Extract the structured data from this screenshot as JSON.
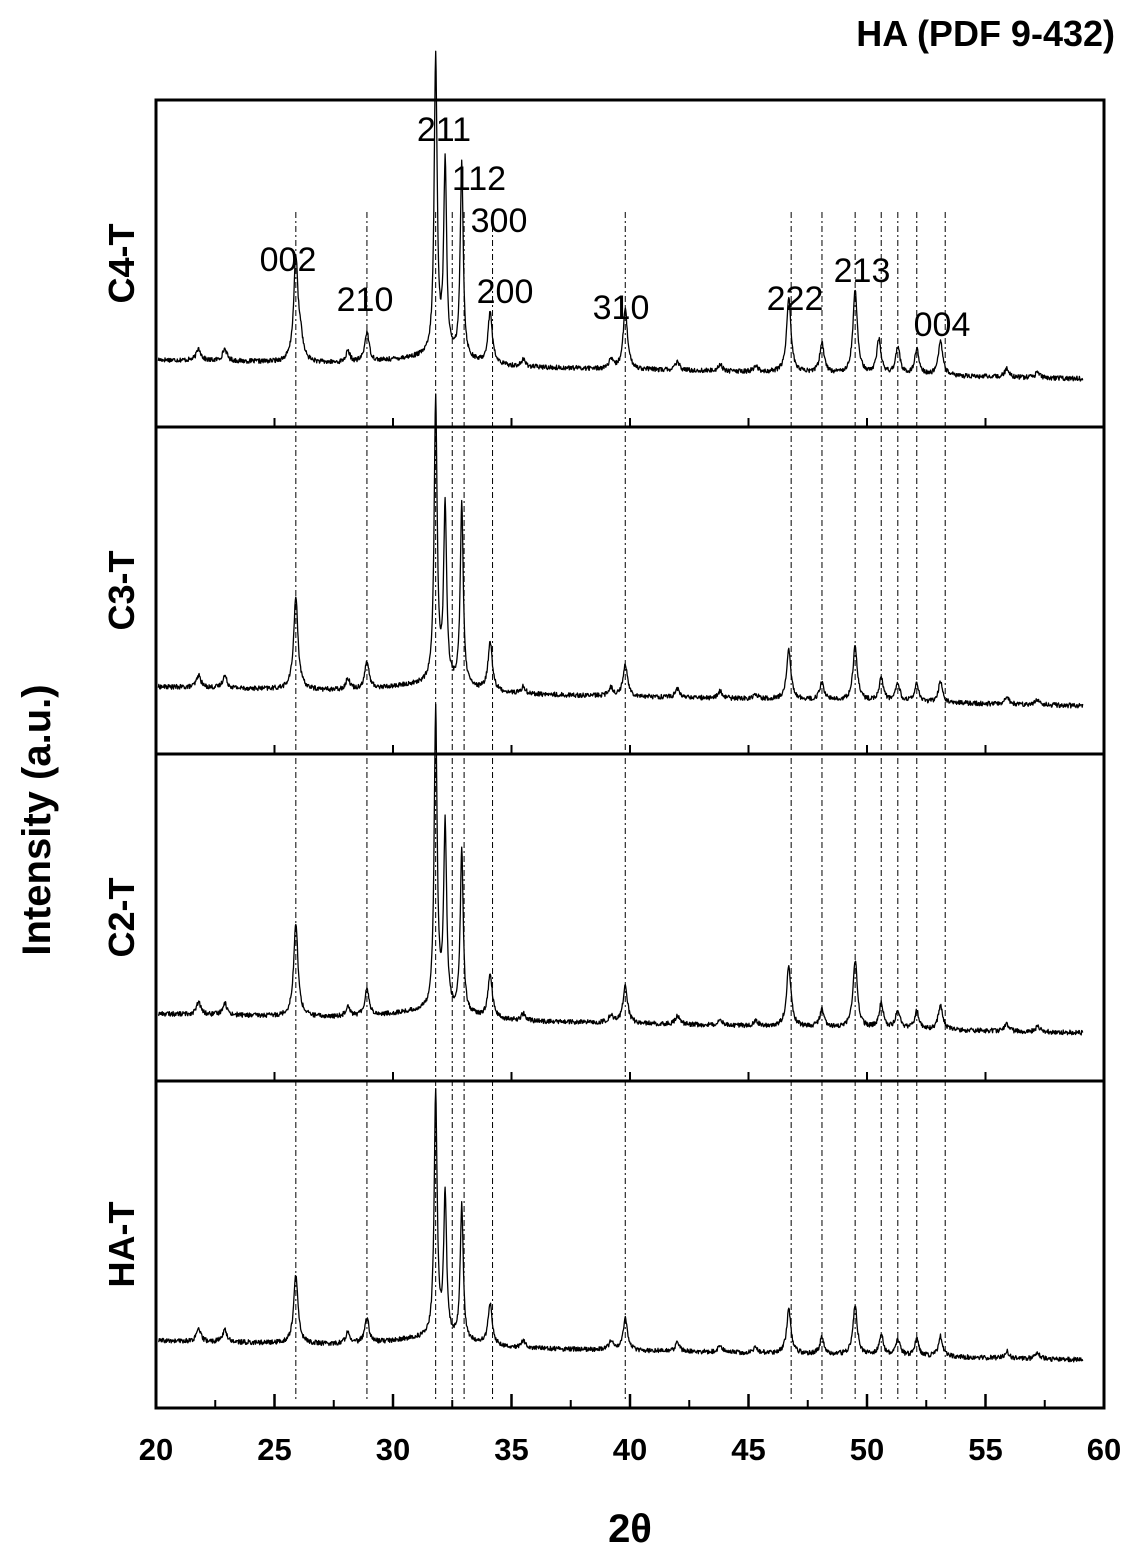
{
  "chart_data": {
    "type": "line",
    "title": "HA (PDF 9-432)",
    "xlabel": "2θ",
    "ylabel": "Intensity (a.u.)",
    "xlim": [
      20,
      60
    ],
    "xticks": [
      20,
      25,
      30,
      35,
      40,
      45,
      50,
      55,
      60
    ],
    "grid": false,
    "panels": [
      "C4-T",
      "C3-T",
      "C2-T",
      "HA-T"
    ],
    "reference_peaks": [
      {
        "label": "002",
        "x": 25.9
      },
      {
        "label": "210",
        "x": 28.9
      },
      {
        "label": "211",
        "x": 31.8
      },
      {
        "label": "112",
        "x": 32.2
      },
      {
        "label": "300",
        "x": 32.9
      },
      {
        "label": "200",
        "x": 34.1
      },
      {
        "label": "310",
        "x": 39.8
      },
      {
        "label": "222",
        "x": 46.7
      },
      {
        "label": "213",
        "x": 49.5
      },
      {
        "label": "004",
        "x": 53.1
      }
    ],
    "reference_lines": [
      25.9,
      28.9,
      31.8,
      32.5,
      33.0,
      34.2,
      39.8,
      46.8,
      48.1,
      49.5,
      50.6,
      51.3,
      52.1,
      53.3
    ],
    "series": [
      {
        "name": "C4-T",
        "x_range": [
          20.1,
          59.1
        ],
        "baseline": [
          [
            20.1,
            2.0
          ],
          [
            59.1,
            0.6
          ]
        ],
        "peaks": [
          [
            21.8,
            0.9
          ],
          [
            22.9,
            0.9
          ],
          [
            25.9,
            7.5
          ],
          [
            26.1,
            1.5
          ],
          [
            28.1,
            0.8
          ],
          [
            28.9,
            2.2
          ],
          [
            31.8,
            22.0
          ],
          [
            32.2,
            14.0
          ],
          [
            32.9,
            14.5
          ],
          [
            34.1,
            3.8
          ],
          [
            35.5,
            0.5
          ],
          [
            39.2,
            0.6
          ],
          [
            39.8,
            4.4
          ],
          [
            42.0,
            0.6
          ],
          [
            43.8,
            0.5
          ],
          [
            45.3,
            0.4
          ],
          [
            46.7,
            5.5
          ],
          [
            48.1,
            2.2
          ],
          [
            49.5,
            6.2
          ],
          [
            50.5,
            2.5
          ],
          [
            51.3,
            2.0
          ],
          [
            52.1,
            1.9
          ],
          [
            53.1,
            2.6
          ],
          [
            55.9,
            0.6
          ],
          [
            57.2,
            0.4
          ]
        ]
      },
      {
        "name": "C3-T",
        "x_range": [
          20.1,
          59.1
        ],
        "baseline": [
          [
            20.1,
            2.0
          ],
          [
            59.1,
            0.6
          ]
        ],
        "peaks": [
          [
            21.8,
            0.9
          ],
          [
            22.9,
            0.9
          ],
          [
            25.9,
            6.8
          ],
          [
            28.1,
            0.8
          ],
          [
            28.9,
            2.0
          ],
          [
            31.8,
            21.0
          ],
          [
            32.2,
            13.0
          ],
          [
            32.9,
            13.5
          ],
          [
            34.1,
            3.6
          ],
          [
            35.5,
            0.5
          ],
          [
            39.2,
            0.6
          ],
          [
            39.8,
            2.4
          ],
          [
            42.0,
            0.6
          ],
          [
            43.8,
            0.5
          ],
          [
            45.3,
            0.4
          ],
          [
            46.7,
            3.6
          ],
          [
            48.1,
            1.3
          ],
          [
            49.5,
            4.0
          ],
          [
            50.6,
            1.7
          ],
          [
            51.3,
            1.3
          ],
          [
            52.1,
            1.3
          ],
          [
            53.1,
            1.5
          ],
          [
            55.9,
            0.5
          ],
          [
            57.2,
            0.4
          ]
        ]
      },
      {
        "name": "C2-T",
        "x_range": [
          20.1,
          59.1
        ],
        "baseline": [
          [
            20.1,
            2.0
          ],
          [
            59.1,
            0.6
          ]
        ],
        "peaks": [
          [
            21.8,
            0.9
          ],
          [
            22.9,
            0.9
          ],
          [
            25.9,
            6.8
          ],
          [
            28.1,
            0.8
          ],
          [
            28.9,
            2.0
          ],
          [
            31.8,
            22.0
          ],
          [
            32.2,
            13.5
          ],
          [
            32.9,
            12.0
          ],
          [
            34.1,
            3.2
          ],
          [
            35.5,
            0.5
          ],
          [
            39.2,
            0.6
          ],
          [
            39.8,
            2.8
          ],
          [
            42.0,
            0.6
          ],
          [
            43.8,
            0.5
          ],
          [
            45.3,
            0.4
          ],
          [
            46.7,
            4.5
          ],
          [
            48.1,
            1.3
          ],
          [
            49.5,
            5.0
          ],
          [
            50.6,
            1.8
          ],
          [
            51.3,
            1.3
          ],
          [
            52.1,
            1.3
          ],
          [
            53.1,
            1.8
          ],
          [
            55.9,
            0.5
          ],
          [
            57.2,
            0.4
          ]
        ]
      },
      {
        "name": "HA-T",
        "x_range": [
          20.1,
          59.1
        ],
        "baseline": [
          [
            20.1,
            2.0
          ],
          [
            59.1,
            0.6
          ]
        ],
        "peaks": [
          [
            21.8,
            0.9
          ],
          [
            22.9,
            0.9
          ],
          [
            25.9,
            5.0
          ],
          [
            28.1,
            0.9
          ],
          [
            28.9,
            1.8
          ],
          [
            31.8,
            18.0
          ],
          [
            32.2,
            10.5
          ],
          [
            32.9,
            10.0
          ],
          [
            34.1,
            3.0
          ],
          [
            35.5,
            0.5
          ],
          [
            39.2,
            0.6
          ],
          [
            39.8,
            2.3
          ],
          [
            42.0,
            0.6
          ],
          [
            43.8,
            0.5
          ],
          [
            45.3,
            0.4
          ],
          [
            46.7,
            3.2
          ],
          [
            48.1,
            1.2
          ],
          [
            49.5,
            3.6
          ],
          [
            50.6,
            1.5
          ],
          [
            51.3,
            1.2
          ],
          [
            52.1,
            1.2
          ],
          [
            53.1,
            1.5
          ],
          [
            55.9,
            0.5
          ],
          [
            57.2,
            0.4
          ]
        ]
      }
    ]
  }
}
